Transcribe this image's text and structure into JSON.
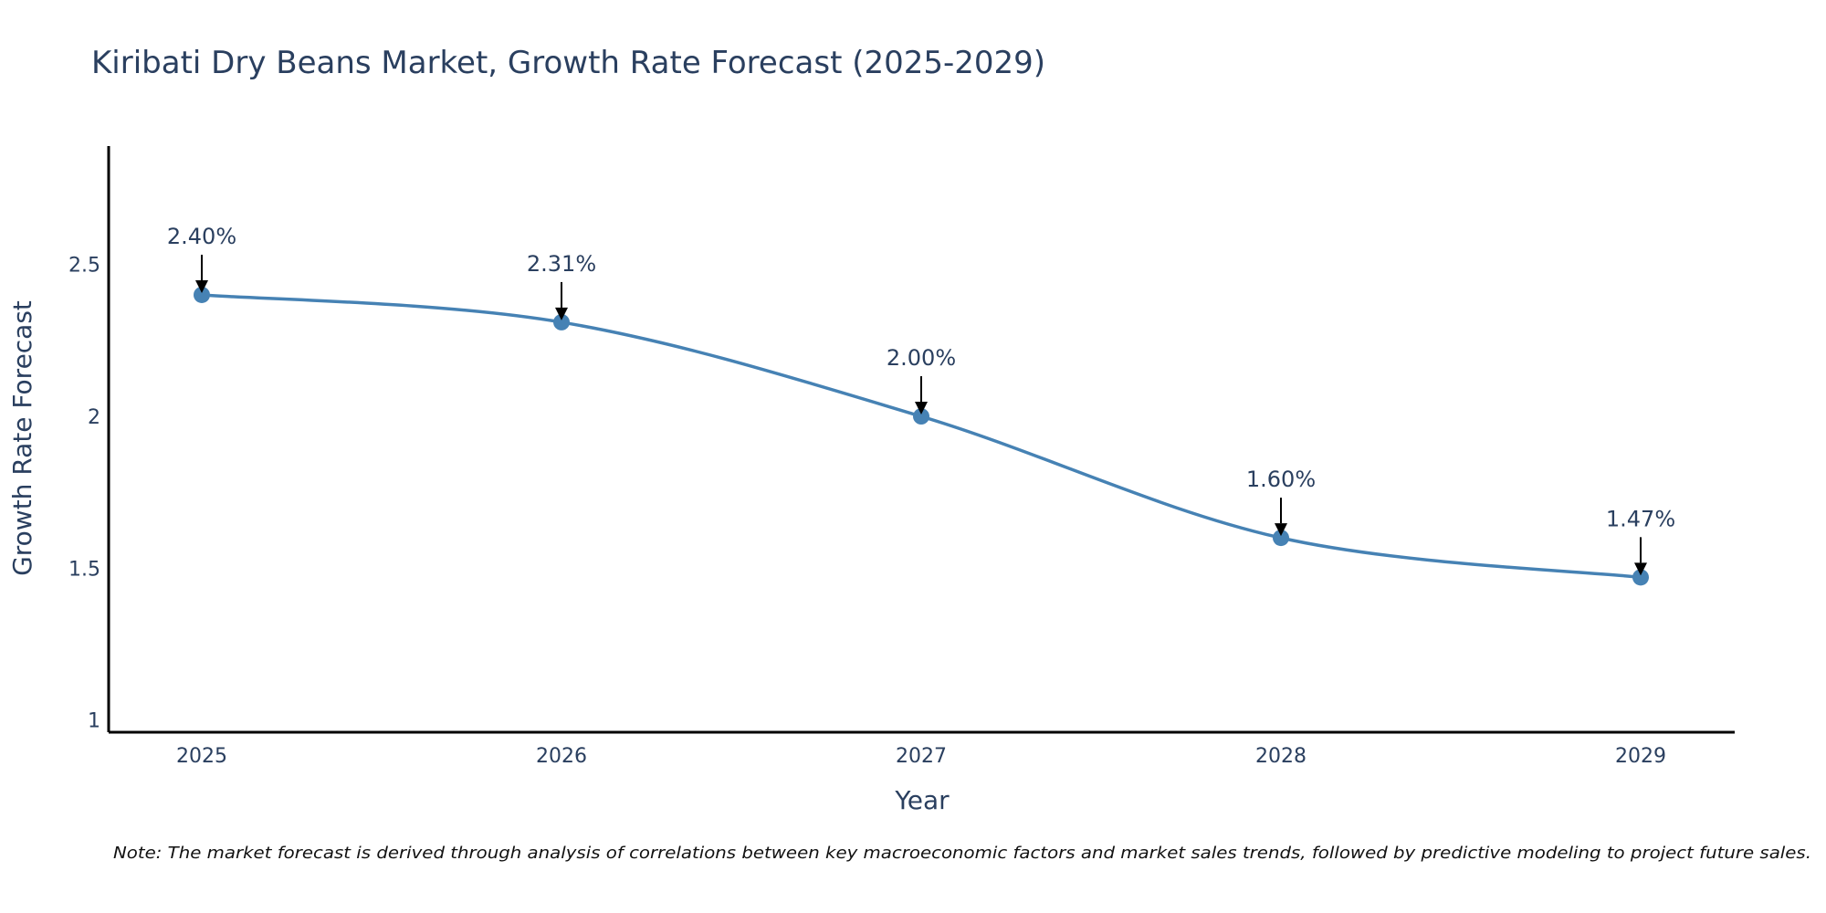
{
  "chart_data": {
    "type": "line",
    "title": "Kiribati Dry Beans Market, Growth Rate Forecast (2025-2029)",
    "xlabel": "Year",
    "ylabel": "Growth Rate Forecast",
    "x": [
      "2025",
      "2026",
      "2027",
      "2028",
      "2029"
    ],
    "values": [
      2.4,
      2.31,
      2.0,
      1.6,
      1.47
    ],
    "data_labels": [
      "2.40%",
      "2.31%",
      "2.00%",
      "1.60%",
      "1.47%"
    ],
    "yticks": [
      1,
      1.5,
      2,
      2.5
    ],
    "ytick_labels": [
      "1",
      "1.5",
      "2",
      "2.5"
    ],
    "ylim": [
      0.96,
      2.89
    ],
    "line_shape": "spline",
    "grid": false,
    "line_color": "#4682b4",
    "marker_color": "#4682b4",
    "arrow_color": "#000000",
    "note": "Note: The market forecast is derived through analysis of correlations between key macroeconomic factors and market sales trends, followed by predictive modeling to project future sales."
  }
}
